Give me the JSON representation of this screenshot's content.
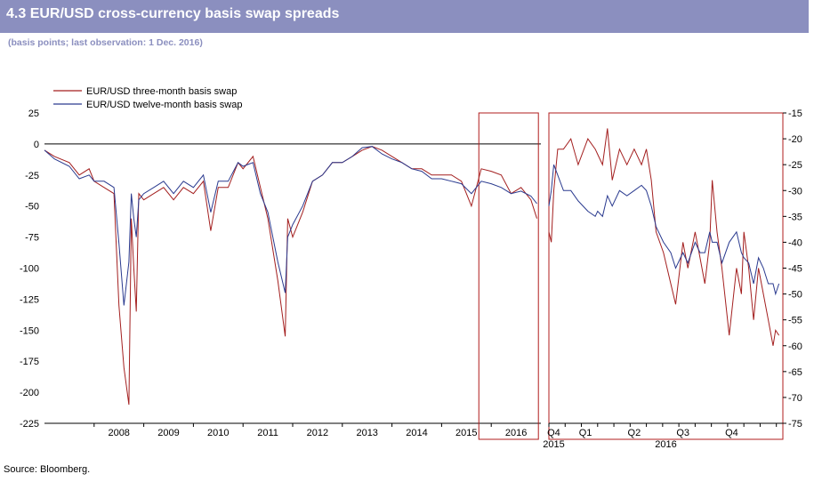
{
  "header": {
    "title": "4.3 EUR/USD cross-currency basis swap spreads"
  },
  "subtitle": "(basis points; last observation: 1 Dec. 2016)",
  "source": "Source: Bloomberg.",
  "colors": {
    "header_bg": "#8b8fbf",
    "three_month": "#a31f1f",
    "twelve_month": "#2a3a8f",
    "highlight_box": "#b01c1c"
  },
  "chart_data": [
    {
      "type": "line",
      "title": "",
      "xlabel": "",
      "ylabel": "",
      "ylim": [
        -225,
        25
      ],
      "yticks": [
        25,
        0,
        -25,
        -50,
        -75,
        -100,
        -125,
        -150,
        -175,
        -200,
        -225
      ],
      "categories": [
        "2008",
        "2009",
        "2010",
        "2011",
        "2012",
        "2013",
        "2014",
        "2015",
        "2016"
      ],
      "legend": {
        "position": "top-left"
      },
      "grid": false,
      "highlight_range": [
        "2015 Q4",
        "2016"
      ],
      "series": [
        {
          "name": "EUR/USD three-month basis swap",
          "x": [
            2007.0,
            2007.2,
            2007.5,
            2007.7,
            2007.9,
            2008.0,
            2008.2,
            2008.4,
            2008.5,
            2008.6,
            2008.7,
            2008.75,
            2008.8,
            2008.85,
            2008.9,
            2009.0,
            2009.2,
            2009.4,
            2009.6,
            2009.8,
            2010.0,
            2010.2,
            2010.35,
            2010.5,
            2010.7,
            2010.9,
            2011.0,
            2011.2,
            2011.35,
            2011.5,
            2011.7,
            2011.85,
            2011.9,
            2012.0,
            2012.2,
            2012.4,
            2012.6,
            2012.8,
            2013.0,
            2013.2,
            2013.4,
            2013.6,
            2013.8,
            2014.0,
            2014.2,
            2014.4,
            2014.6,
            2014.8,
            2015.0,
            2015.2,
            2015.4,
            2015.6,
            2015.8,
            2016.0,
            2016.2,
            2016.4,
            2016.6,
            2016.8,
            2016.92
          ],
          "values": [
            -5,
            -10,
            -15,
            -25,
            -20,
            -30,
            -35,
            -40,
            -130,
            -180,
            -210,
            -60,
            -100,
            -135,
            -40,
            -45,
            -40,
            -35,
            -45,
            -35,
            -40,
            -30,
            -70,
            -35,
            -35,
            -15,
            -20,
            -10,
            -35,
            -60,
            -110,
            -155,
            -60,
            -75,
            -55,
            -30,
            -25,
            -15,
            -15,
            -10,
            -5,
            -2,
            -5,
            -10,
            -15,
            -20,
            -20,
            -25,
            -25,
            -25,
            -30,
            -50,
            -20,
            -22,
            -25,
            -40,
            -35,
            -45,
            -60
          ]
        },
        {
          "name": "EUR/USD twelve-month basis swap",
          "x": [
            2007.0,
            2007.2,
            2007.5,
            2007.7,
            2007.9,
            2008.0,
            2008.2,
            2008.4,
            2008.5,
            2008.6,
            2008.7,
            2008.75,
            2008.8,
            2008.85,
            2008.9,
            2009.0,
            2009.2,
            2009.4,
            2009.6,
            2009.8,
            2010.0,
            2010.2,
            2010.35,
            2010.5,
            2010.7,
            2010.9,
            2011.0,
            2011.2,
            2011.35,
            2011.5,
            2011.7,
            2011.85,
            2011.9,
            2012.0,
            2012.2,
            2012.4,
            2012.6,
            2012.8,
            2013.0,
            2013.2,
            2013.4,
            2013.6,
            2013.8,
            2014.0,
            2014.2,
            2014.4,
            2014.6,
            2014.8,
            2015.0,
            2015.2,
            2015.4,
            2015.6,
            2015.8,
            2016.0,
            2016.2,
            2016.4,
            2016.6,
            2016.8,
            2016.92
          ],
          "values": [
            -5,
            -12,
            -18,
            -28,
            -25,
            -30,
            -30,
            -35,
            -80,
            -130,
            -95,
            -40,
            -60,
            -75,
            -45,
            -40,
            -35,
            -30,
            -40,
            -30,
            -35,
            -25,
            -55,
            -30,
            -30,
            -15,
            -18,
            -15,
            -40,
            -55,
            -95,
            -120,
            -75,
            -65,
            -50,
            -30,
            -25,
            -15,
            -15,
            -10,
            -3,
            -2,
            -8,
            -12,
            -15,
            -20,
            -22,
            -28,
            -28,
            -30,
            -32,
            -40,
            -30,
            -32,
            -35,
            -40,
            -38,
            -42,
            -48
          ]
        }
      ]
    },
    {
      "type": "line",
      "title": "",
      "xlabel": "",
      "ylabel": "",
      "ylim": [
        -75,
        -15
      ],
      "yticks": [
        -15,
        -20,
        -25,
        -30,
        -35,
        -40,
        -45,
        -50,
        -55,
        -60,
        -65,
        -70,
        -75
      ],
      "categories": [
        "Q4",
        "Q1",
        "Q2",
        "Q3",
        "Q4"
      ],
      "year_labels": [
        "2015",
        "2016"
      ],
      "grid": false,
      "series": [
        {
          "name": "EUR/USD three-month basis swap",
          "x": [
            0,
            0.05,
            0.1,
            0.18,
            0.3,
            0.45,
            0.6,
            0.8,
            0.95,
            1.0,
            1.1,
            1.2,
            1.3,
            1.45,
            1.6,
            1.75,
            1.9,
            2.0,
            2.1,
            2.2,
            2.35,
            2.5,
            2.6,
            2.75,
            2.85,
            3.0,
            3.1,
            3.2,
            3.3,
            3.35,
            3.45,
            3.55,
            3.7,
            3.85,
            3.95,
            4.0,
            4.1,
            4.2,
            4.3,
            4.4,
            4.5,
            4.6,
            4.65,
            4.72
          ],
          "values": [
            -38,
            -40,
            -30,
            -22,
            -22,
            -20,
            -25,
            -20,
            -22,
            -23,
            -25,
            -18,
            -28,
            -22,
            -25,
            -22,
            -25,
            -22,
            -28,
            -38,
            -42,
            -48,
            -52,
            -40,
            -45,
            -38,
            -43,
            -48,
            -40,
            -28,
            -38,
            -45,
            -58,
            -45,
            -50,
            -38,
            -45,
            -55,
            -45,
            -50,
            -55,
            -60,
            -57,
            -58
          ]
        },
        {
          "name": "EUR/USD twelve-month basis swap",
          "x": [
            0,
            0.05,
            0.1,
            0.18,
            0.3,
            0.45,
            0.6,
            0.8,
            0.95,
            1.0,
            1.1,
            1.2,
            1.3,
            1.45,
            1.6,
            1.75,
            1.9,
            2.0,
            2.1,
            2.2,
            2.35,
            2.5,
            2.6,
            2.75,
            2.85,
            3.0,
            3.1,
            3.2,
            3.3,
            3.35,
            3.45,
            3.55,
            3.7,
            3.85,
            3.95,
            4.0,
            4.1,
            4.2,
            4.3,
            4.4,
            4.5,
            4.6,
            4.65,
            4.72
          ],
          "values": [
            -33,
            -30,
            -25,
            -27,
            -30,
            -30,
            -32,
            -34,
            -35,
            -34,
            -35,
            -31,
            -33,
            -30,
            -31,
            -30,
            -29,
            -30,
            -33,
            -37,
            -40,
            -42,
            -45,
            -42,
            -44,
            -40,
            -42,
            -42,
            -38,
            -40,
            -40,
            -44,
            -40,
            -38,
            -42,
            -43,
            -44,
            -48,
            -43,
            -45,
            -48,
            -48,
            -50,
            -48
          ]
        }
      ]
    }
  ]
}
